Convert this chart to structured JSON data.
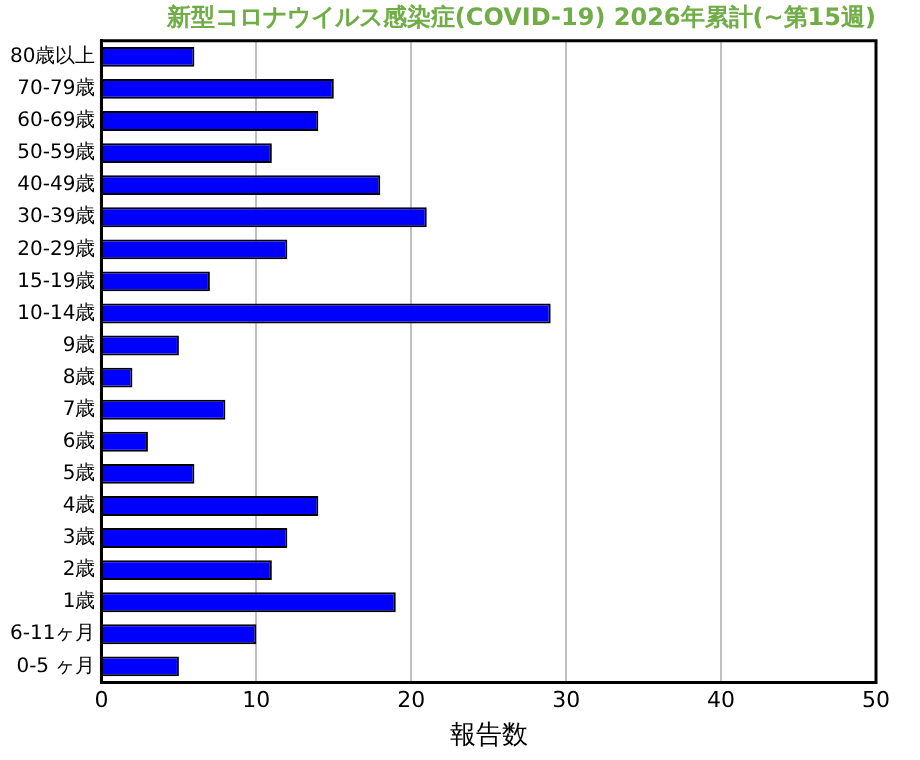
{
  "chart_data": {
    "type": "bar",
    "orientation": "horizontal",
    "title": "新型コロナウイルス感染症(COVID-19) 2026年累計(~第15週)",
    "xlabel": "報告数",
    "categories": [
      "80歳以上",
      "70-79歳",
      "60-69歳",
      "50-59歳",
      "40-49歳",
      "30-39歳",
      "20-29歳",
      "15-19歳",
      "10-14歳",
      "9歳",
      "8歳",
      "7歳",
      "6歳",
      "5歳",
      "4歳",
      "3歳",
      "2歳",
      "1歳",
      "6-11ヶ月",
      "0-5 ヶ月"
    ],
    "values": [
      6,
      15,
      14,
      11,
      18,
      21,
      12,
      7,
      29,
      5,
      2,
      8,
      3,
      6,
      14,
      12,
      11,
      19,
      10,
      5
    ],
    "color": "#0000ff",
    "xlim": [
      0,
      50
    ],
    "xticks": [
      0,
      10,
      20,
      30,
      40,
      50
    ],
    "grid": "x",
    "legend": false
  }
}
